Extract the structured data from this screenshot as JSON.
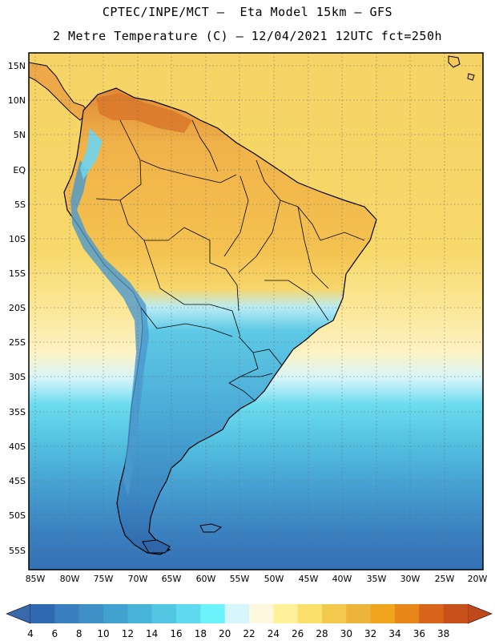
{
  "header": {
    "line1": "CPTEC/INPE/MCT –  Eta Model 15km – GFS",
    "line2": "2 Metre Temperature (C) – 12/04/2021 12UTC fct=250h"
  },
  "map": {
    "lat_labels": [
      "15N",
      "10N",
      "5N",
      "EQ",
      "5S",
      "10S",
      "15S",
      "20S",
      "25S",
      "30S",
      "35S",
      "40S",
      "45S",
      "50S",
      "55S"
    ],
    "lon_labels": [
      "85W",
      "80W",
      "75W",
      "70W",
      "65W",
      "60W",
      "55W",
      "50W",
      "45W",
      "40W",
      "35W",
      "30W",
      "25W",
      "20W"
    ],
    "colors": {
      "ocean_north": "#f5cf5a",
      "ocean_mid": "#fbeea0",
      "ocean_cool": "#6fd8ec",
      "ocean_south": "#4a9fcf",
      "ocean_deep": "#3878b8",
      "land_warm": "#f2b84a",
      "land_hot": "#d9782a",
      "land_cool": "#5bb9dc",
      "coast": "#000000"
    }
  },
  "colorbar": {
    "labels": [
      "4",
      "6",
      "8",
      "10",
      "12",
      "14",
      "16",
      "18",
      "20",
      "22",
      "24",
      "26",
      "28",
      "30",
      "32",
      "34",
      "36",
      "38"
    ],
    "colors": [
      "#2f6ab0",
      "#3a7fbf",
      "#3f90c6",
      "#42a2cf",
      "#48b4da",
      "#52c6e2",
      "#5fdaee",
      "#6cf2fa",
      "#d7f6fb",
      "#fdf8de",
      "#fff19a",
      "#fbe06c",
      "#f2c94c",
      "#ecb43a",
      "#f0a51c",
      "#e8861a",
      "#d9651a",
      "#c8501a"
    ],
    "low_color": "#3869ad",
    "high_color": "#c0481a"
  }
}
